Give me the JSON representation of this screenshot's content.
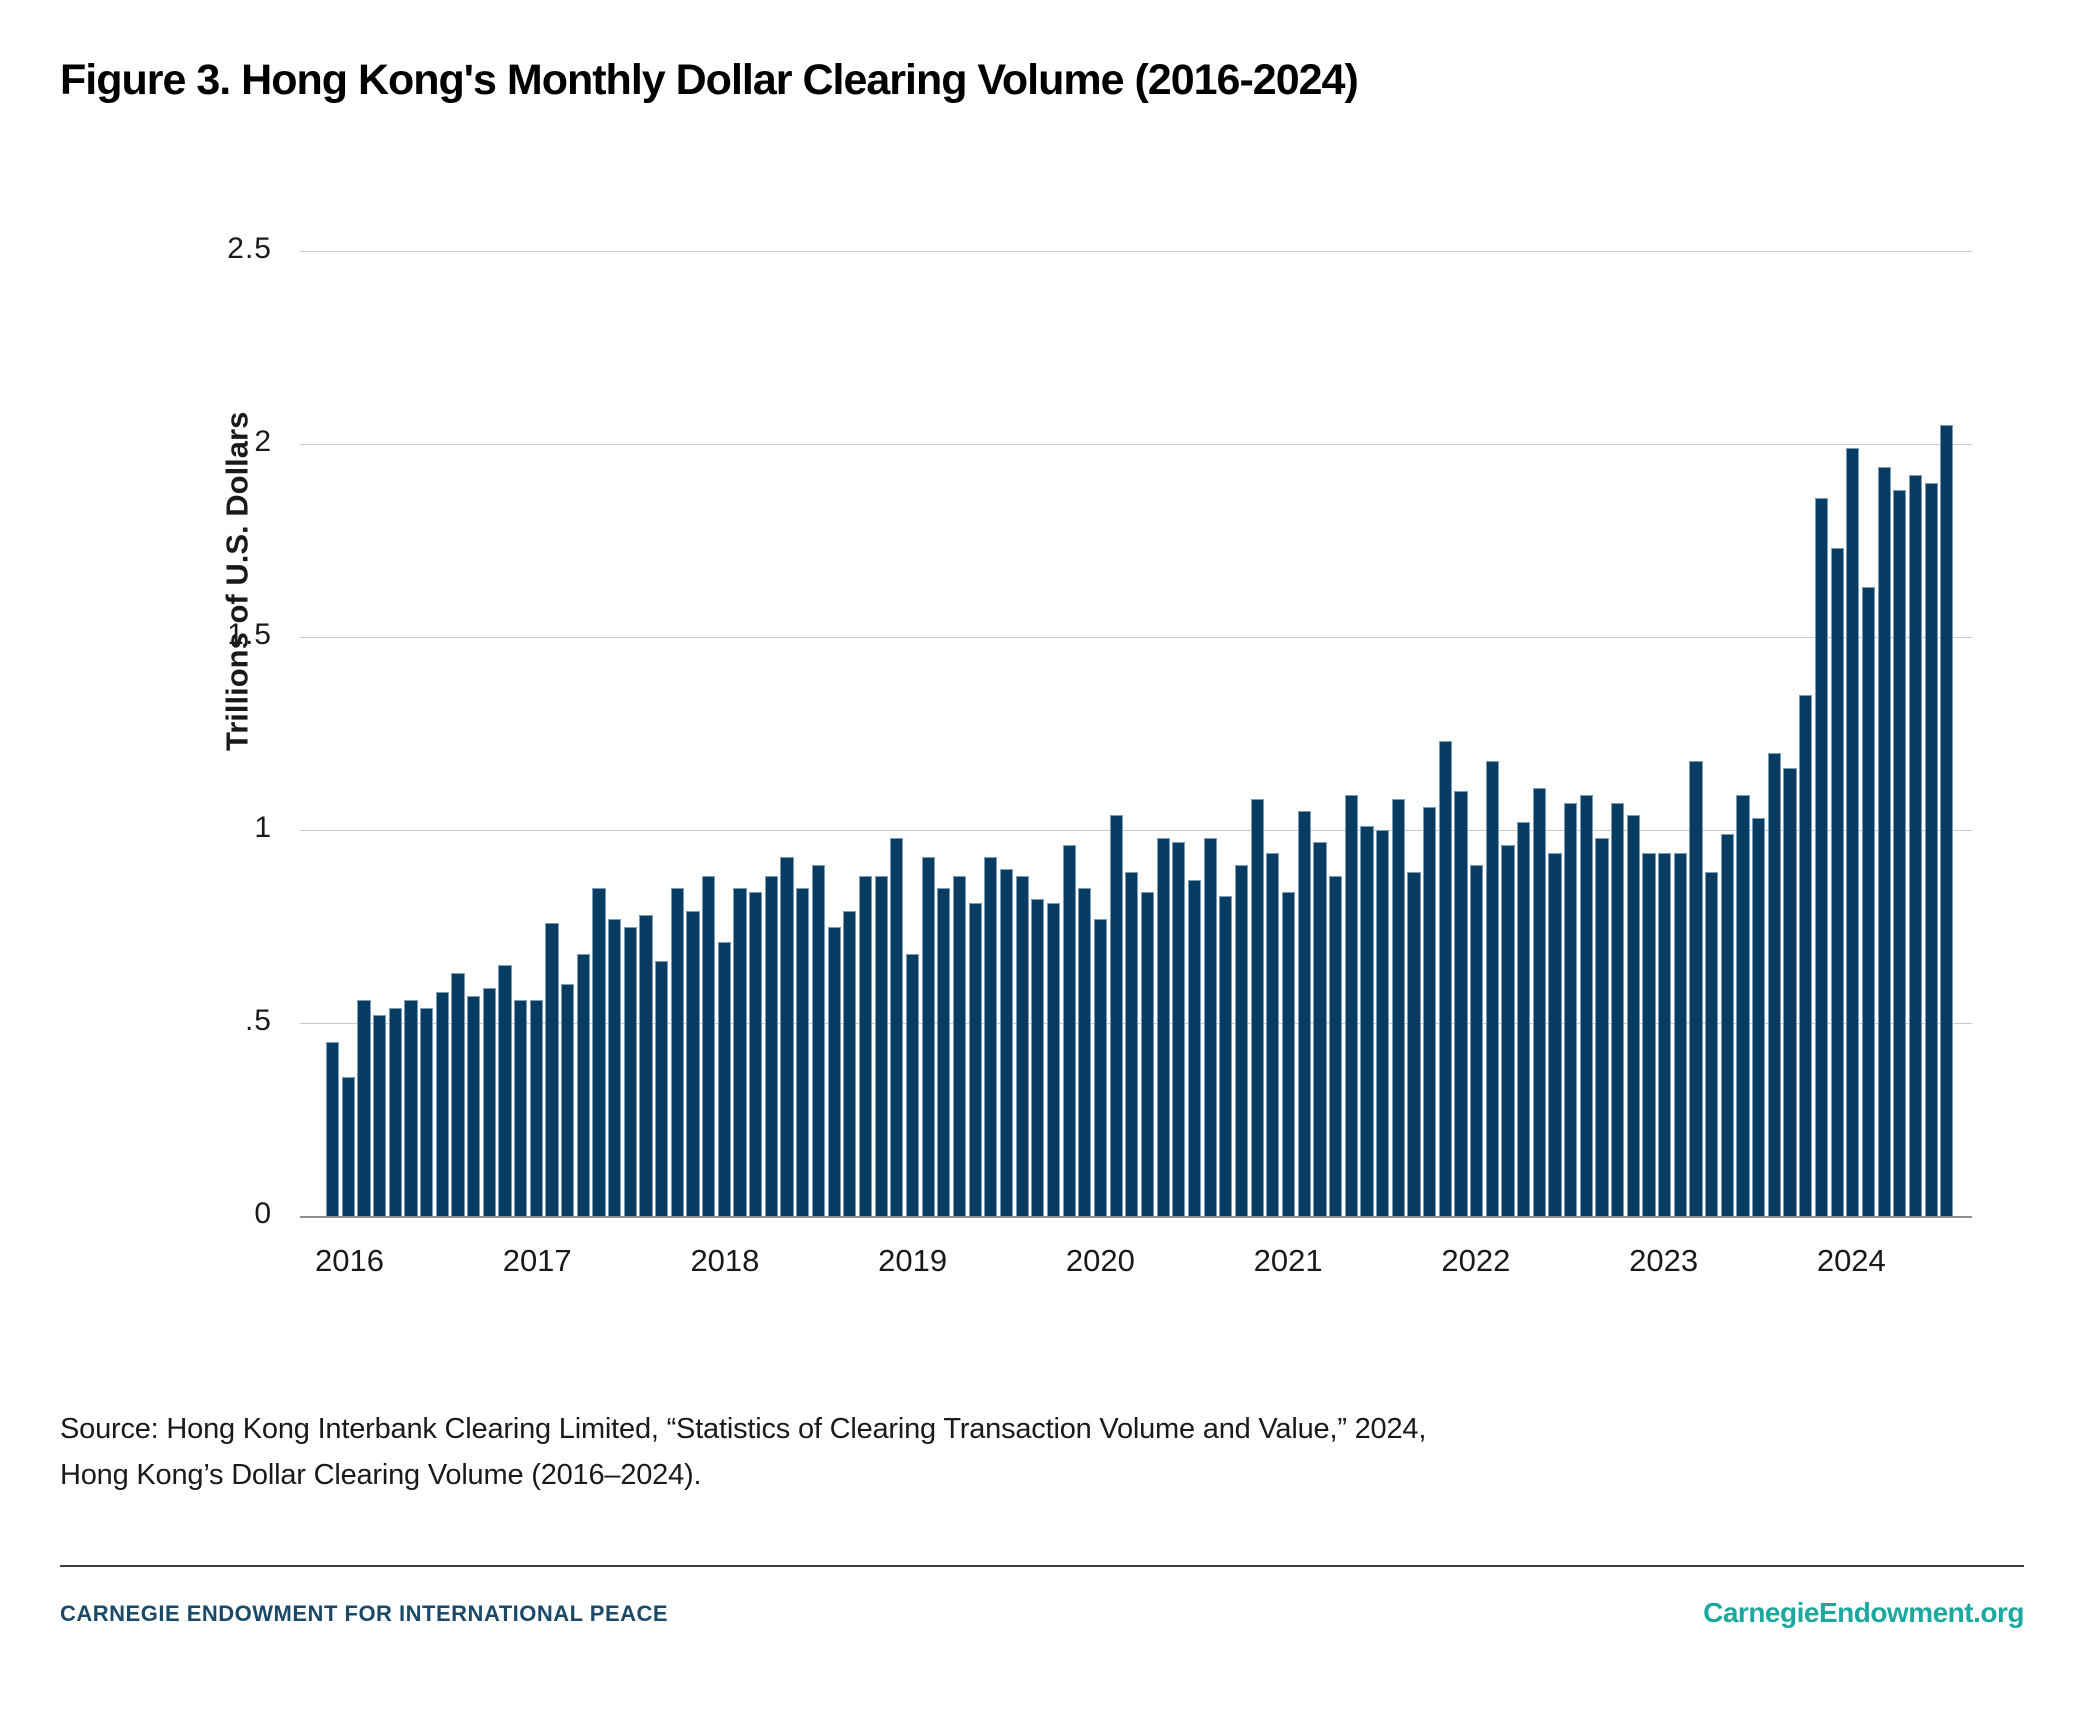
{
  "figure": {
    "title": "Figure 3. Hong Kong's Monthly Dollar Clearing Volume (2016-2024)"
  },
  "chart_data": {
    "type": "bar",
    "title": "Hong Kong's Monthly Dollar Clearing Volume (2016-2024)",
    "xlabel": "",
    "ylabel": "Trillions of U.S. Dollars",
    "ylim": [
      0,
      2.5
    ],
    "ytick_values": [
      2.5,
      2,
      1.5,
      1,
      0.5,
      0
    ],
    "ytick_labels": [
      "2.5",
      "2",
      "1.5",
      "1",
      ".5",
      "0"
    ],
    "grid": "horizontal",
    "legend": "none",
    "bar_color": "#083C62",
    "x_year_labels": [
      "2016",
      "2017",
      "2018",
      "2019",
      "2020",
      "2021",
      "2022",
      "2023",
      "2024"
    ],
    "series_by_year": [
      {
        "year": "2016",
        "values": [
          0.45,
          0.36,
          0.56,
          0.52,
          0.54,
          0.56,
          0.54,
          0.58,
          0.63,
          0.57,
          0.59,
          0.65
        ]
      },
      {
        "year": "2017",
        "values": [
          0.56,
          0.56,
          0.76,
          0.6,
          0.68,
          0.85,
          0.77,
          0.75,
          0.78,
          0.66,
          0.85,
          0.79
        ]
      },
      {
        "year": "2018",
        "values": [
          0.88,
          0.71,
          0.85,
          0.84,
          0.88,
          0.93,
          0.85,
          0.91,
          0.75,
          0.79,
          0.88,
          0.88
        ]
      },
      {
        "year": "2019",
        "values": [
          0.98,
          0.68,
          0.93,
          0.85,
          0.88,
          0.81,
          0.93,
          0.9,
          0.88,
          0.82,
          0.81,
          0.96
        ]
      },
      {
        "year": "2020",
        "values": [
          0.85,
          0.77,
          1.04,
          0.89,
          0.84,
          0.98,
          0.97,
          0.87,
          0.98,
          0.83,
          0.91,
          1.08
        ]
      },
      {
        "year": "2021",
        "values": [
          0.94,
          0.84,
          1.05,
          0.97,
          0.88,
          1.09,
          1.01,
          1.0,
          1.08,
          0.89,
          1.06,
          1.23
        ]
      },
      {
        "year": "2022",
        "values": [
          1.1,
          0.91,
          1.18,
          0.96,
          1.02,
          1.11,
          0.94,
          1.07,
          1.09,
          0.98,
          1.07,
          1.04
        ]
      },
      {
        "year": "2023",
        "values": [
          0.94,
          0.94,
          0.94,
          1.18,
          0.89,
          0.99,
          1.09,
          1.03,
          1.2,
          1.16,
          1.35,
          1.86
        ]
      },
      {
        "year": "2024",
        "values": [
          1.73,
          1.99,
          1.63,
          1.94,
          1.88,
          1.92,
          1.9,
          2.05
        ]
      }
    ]
  },
  "source": {
    "line1": "Source: Hong Kong Interbank Clearing Limited, “Statistics of Clearing Transaction Volume and Value,” 2024,",
    "line2": "Hong Kong’s Dollar Clearing Volume (2016–2024)."
  },
  "footer": {
    "left": "CARNEGIE ENDOWMENT FOR INTERNATIONAL PEACE",
    "right": "CarnegieEndowment.org",
    "navy": "#1B4A68",
    "teal": "#1CA89E"
  }
}
